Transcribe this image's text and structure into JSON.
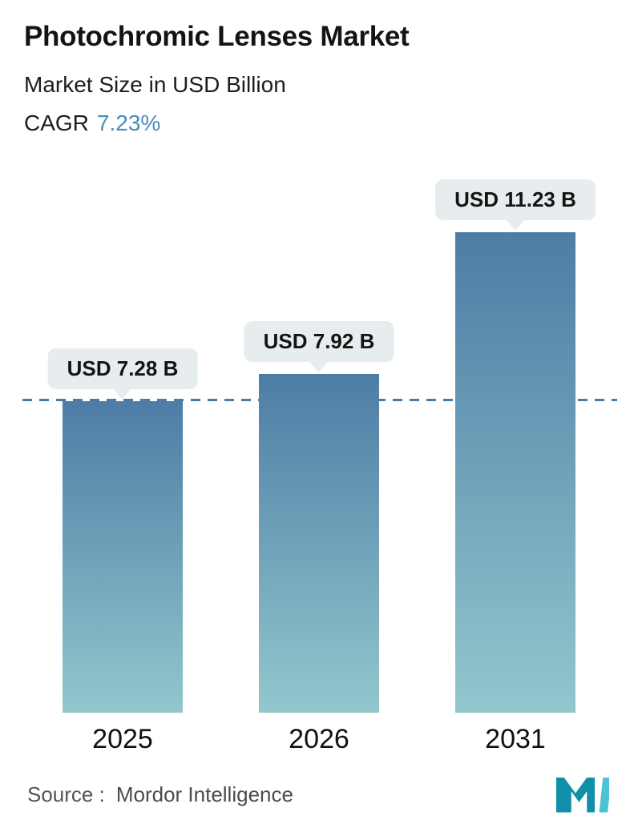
{
  "header": {
    "title": "Photochromic Lenses Market",
    "subtitle": "Market Size in USD Billion",
    "cagr_label": "CAGR",
    "cagr_value": "7.23%"
  },
  "chart_data": {
    "type": "bar",
    "title": "Photochromic Lenses Market",
    "subtitle": "Market Size in USD Billion",
    "unit": "USD Billion",
    "categories": [
      "2025",
      "2026",
      "2031"
    ],
    "values": [
      7.28,
      7.92,
      11.23
    ],
    "value_labels": [
      "USD 7.28 B",
      "USD 7.92 B",
      "USD 11.23 B"
    ],
    "ylim": [
      0,
      11.23
    ],
    "grid": false,
    "legend": "none",
    "reference_line": {
      "value": 7.28,
      "style": "dashed",
      "color": "#4a7ba8"
    },
    "bar_gradient_top": "#4d7da5",
    "bar_gradient_bottom": "#92c7cd"
  },
  "footer": {
    "source_label": "Source :",
    "source_value": "Mordor Intelligence"
  },
  "colors": {
    "accent_blue": "#4a8cba",
    "label_pill_bg": "#e7edee",
    "dashed_line": "#4a7ba8",
    "logo_dark": "#1090a8",
    "logo_light": "#4cc3d5"
  }
}
